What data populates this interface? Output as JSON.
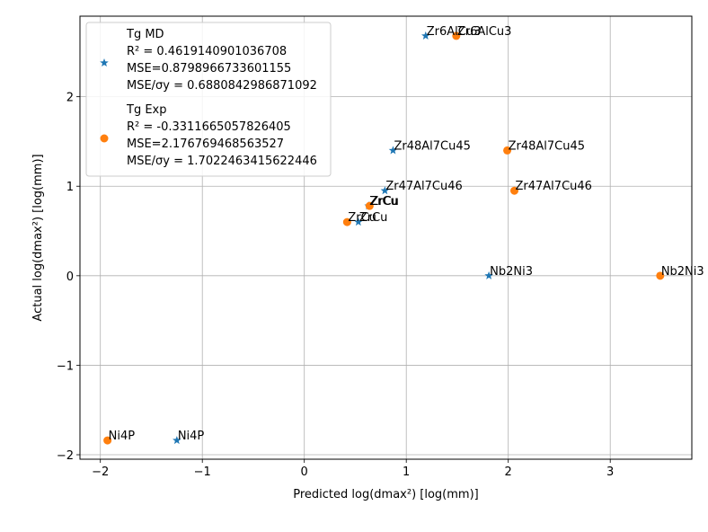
{
  "chart_data": {
    "type": "scatter",
    "xlabel": "Predicted log(dmax²) [log(mm)]",
    "ylabel": "Actual log(dmax²) [log(mm)]",
    "xlim": [
      -2.2,
      3.8
    ],
    "ylim": [
      -2.05,
      2.9
    ],
    "xticks": [
      -2,
      -1,
      0,
      1,
      2,
      3
    ],
    "yticks": [
      -2,
      -1,
      0,
      1,
      2
    ],
    "xtick_labels": [
      "−2",
      "−1",
      "0",
      "1",
      "2",
      "3"
    ],
    "ytick_labels": [
      "−2",
      "−1",
      "0",
      "1",
      "2"
    ],
    "grid": true,
    "legend_position": "top-left",
    "series": [
      {
        "name": "Tg MD",
        "marker": "star",
        "color": "#1f77b4",
        "legend_lines": [
          "Tg MD",
          "R² = 0.4619140901036708",
          "MSE=0.8798966733601155",
          "MSE/σy = 0.6880842986871092"
        ],
        "points": [
          {
            "x": 1.19,
            "y": 2.68,
            "label": "Zr6AlCu3"
          },
          {
            "x": 0.87,
            "y": 1.4,
            "label": "Zr48Al7Cu45"
          },
          {
            "x": 0.79,
            "y": 0.95,
            "label": "Zr47Al7Cu46"
          },
          {
            "x": 0.63,
            "y": 0.78,
            "label": "ZrCu"
          },
          {
            "x": 0.53,
            "y": 0.6,
            "label": "ZrCu"
          },
          {
            "x": 1.81,
            "y": 0.0,
            "label": "Nb2Ni3"
          },
          {
            "x": -1.25,
            "y": -1.84,
            "label": "Ni4P"
          }
        ]
      },
      {
        "name": "Tg Exp",
        "marker": "circle",
        "color": "#ff7f0e",
        "legend_lines": [
          "Tg Exp",
          "R² = -0.3311665057826405",
          "MSE=2.176769468563527",
          "MSE/σy = 1.7022463415622446"
        ],
        "points": [
          {
            "x": 1.49,
            "y": 2.68,
            "label": "Zr6AlCu3"
          },
          {
            "x": 1.99,
            "y": 1.4,
            "label": "Zr48Al7Cu45"
          },
          {
            "x": 2.06,
            "y": 0.95,
            "label": "Zr47Al7Cu46"
          },
          {
            "x": 0.64,
            "y": 0.78,
            "label": "ZrCu"
          },
          {
            "x": 0.42,
            "y": 0.6,
            "label": "ZrCu"
          },
          {
            "x": 3.49,
            "y": 0.0,
            "label": "Nb2Ni3"
          },
          {
            "x": -1.93,
            "y": -1.84,
            "label": "Ni4P"
          }
        ]
      }
    ]
  }
}
